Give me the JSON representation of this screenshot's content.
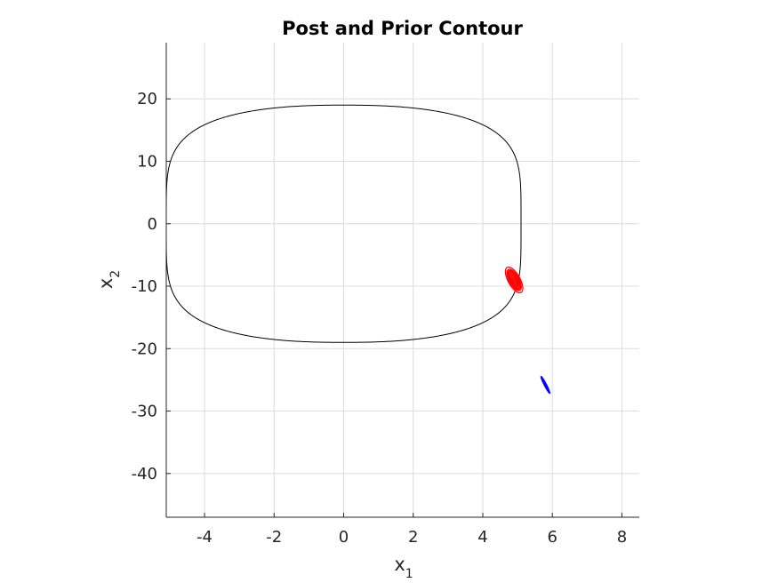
{
  "chart_data": {
    "type": "line",
    "title": "Post and Prior Contour",
    "xlabel": {
      "base": "x",
      "sub": "1"
    },
    "ylabel": {
      "base": "x",
      "sub": "2"
    },
    "xlim": [
      -5.1,
      8.5
    ],
    "ylim": [
      -47,
      29
    ],
    "xticks": [
      -4,
      -2,
      0,
      2,
      4,
      6,
      8
    ],
    "yticks": [
      20,
      10,
      0,
      -10,
      -20,
      -30,
      -40
    ],
    "xtick_labels": [
      "-4",
      "-2",
      "0",
      "2",
      "4",
      "6",
      "8"
    ],
    "ytick_labels": [
      "20",
      "10",
      "0",
      "-10",
      "-20",
      "-30",
      "-40"
    ],
    "grid": true,
    "series": [
      {
        "kind": "limit-cycle",
        "color": "#000000",
        "center": [
          0,
          0
        ],
        "semi_axes": [
          5.1,
          19
        ],
        "exponents": [
          2.4,
          4.5
        ]
      },
      {
        "kind": "posterior-contours",
        "color": "#ff0000",
        "center": [
          4.9,
          -9.0
        ],
        "major_axis_extent": [
          [
            4.7,
            -7.0
          ],
          [
            5.1,
            -11.0
          ]
        ],
        "levels": 6
      },
      {
        "kind": "prior-contour",
        "color": "#0000ff",
        "center": [
          5.8,
          -25.8
        ],
        "major_axis_extent": [
          [
            5.65,
            -24.3
          ],
          [
            5.9,
            -27.0
          ]
        ]
      }
    ]
  }
}
